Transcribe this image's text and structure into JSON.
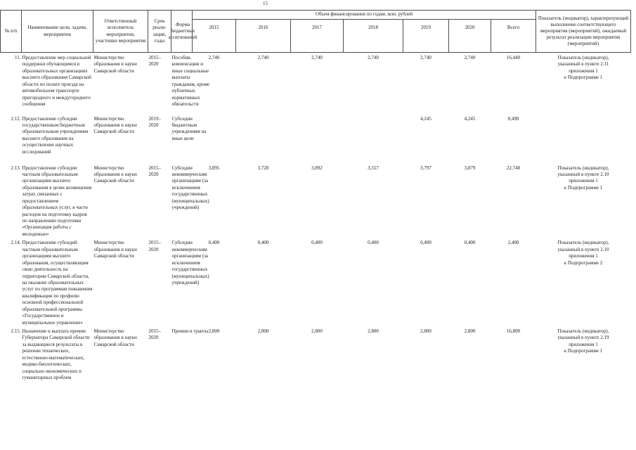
{
  "page_number": "15",
  "colors": {
    "ink": "#1d1d1d",
    "paper": "#ffffff",
    "rule": "#4d4d4d"
  },
  "table": {
    "header": {
      "num": "№ п/п",
      "name": "Наименование цели, задачи, мероприятия",
      "responsible": "Ответственный исполнитель мероприятия, участники мероприятия",
      "term": "Срок\nреали-\nзации,\nгоды",
      "form": "Форма бюджетных ассигнований",
      "financing_span": "Объем финансирования по годам, млн. рублей",
      "years": [
        "2015",
        "2016",
        "2017",
        "2018",
        "2019",
        "2020",
        "Всего"
      ],
      "indicator": "Показатель (индикатор), характеризующий выполнение соответствующего мероприятия (мероприятий), ожидаемый результат реализации мероприятия (мероприятий)"
    },
    "rows": [
      {
        "num": "11.",
        "name": "Предоставление мер социальной поддержки обучающимся в образовательных организациях высшего образования Самарской области по оплате проезда на автомобильном транспорте пригородного и междугороднего сообщения",
        "responsible": "Министерство образования и науки Самарской области",
        "years": "2015–\n2020",
        "form": "Пособия, компенсации и иные социальные выплаты гражданам, кроме публичных нормативных обязательств",
        "values": [
          "2,740",
          "2,740",
          "2,740",
          "2,740",
          "2,740",
          "2,740",
          "16,440"
        ],
        "indicator": "Показатель (индикатор),\nуказанный в пункте 2.11\nприложения 1\nк Подпрограмме 1"
      },
      {
        "num": "2.12.",
        "name": "Предоставление субсидии государственным бюджетным образовательным учреждениям высшего образования на осуществление научных исследований",
        "responsible": "Министерство образования и науки Самарской области",
        "years": "2019–\n2020",
        "form": "Субсидии бюджетным учреждениям на иные цели",
        "values": [
          "",
          "",
          "",
          "",
          "4,245",
          "4,245",
          "8,490"
        ],
        "indicator": ""
      },
      {
        "num": "2.13.",
        "name": "Предоставление субсидии частным образовательным организациям высшего образования в целях возмещения затрат, связанных с предоставлением образовательных услуг, в части расходов на подготовку кадров по направлению подготовки «Организация работы с молодежью»",
        "responsible": "Министерство образования и науки Самарской области",
        "years": "2015–\n2020",
        "form": "Субсидии некоммерческим организациям (за исключением государственных (муниципальных) учреждений)",
        "values": [
          "3,895",
          "3,728",
          "3,892",
          "3,557",
          "3,797",
          "3,879",
          "22,748"
        ],
        "indicator": "Показатель (индикатор),\nуказанный в пункте 2.10\nприложения 1\nк Подпрограмме 1"
      },
      {
        "num": "2.14.",
        "name": "Предоставление субсидий частным образовательным организациям высшего образования, осуществляющим свою деятельность на территории Самарской области, на оказание образовательных услуг по программам повышения квалификации по профилю основной профессиональной образовательной программы «Государственное и муниципальное управление»",
        "responsible": "Министерство образования и науки Самарской области",
        "years": "2015–\n2020",
        "form": "Субсидии некоммерческим организациям (за исключением государственных (муниципальных) учреждений)",
        "values": [
          "0,400",
          "0,400",
          "0,400",
          "0,400",
          "0,400",
          "0,400",
          "2,400"
        ],
        "indicator": "Показатель (индикатор),\nуказанный в пункте 2.10\nприложения 1\nк Подпрограмме 2"
      },
      {
        "num": "2.15.",
        "name": "Назначение и выплата премии Губернатора Самарской области за выдающиеся результаты в решении технических, естественно-математических, медико-биологических, социально-экономических и гуманитарных проблем",
        "responsible": "Министерство образования и науки Самарской области",
        "years": "2015–\n2020",
        "form": "Премии и гранты",
        "values": [
          "2,800",
          "2,800",
          "2,800",
          "2,800",
          "2,800",
          "2,800",
          "16,800"
        ],
        "indicator": "Показатель (индикатор),\nуказанный в пункте 2.19\nприложения 1\nк Подпрограмме 1"
      }
    ]
  }
}
